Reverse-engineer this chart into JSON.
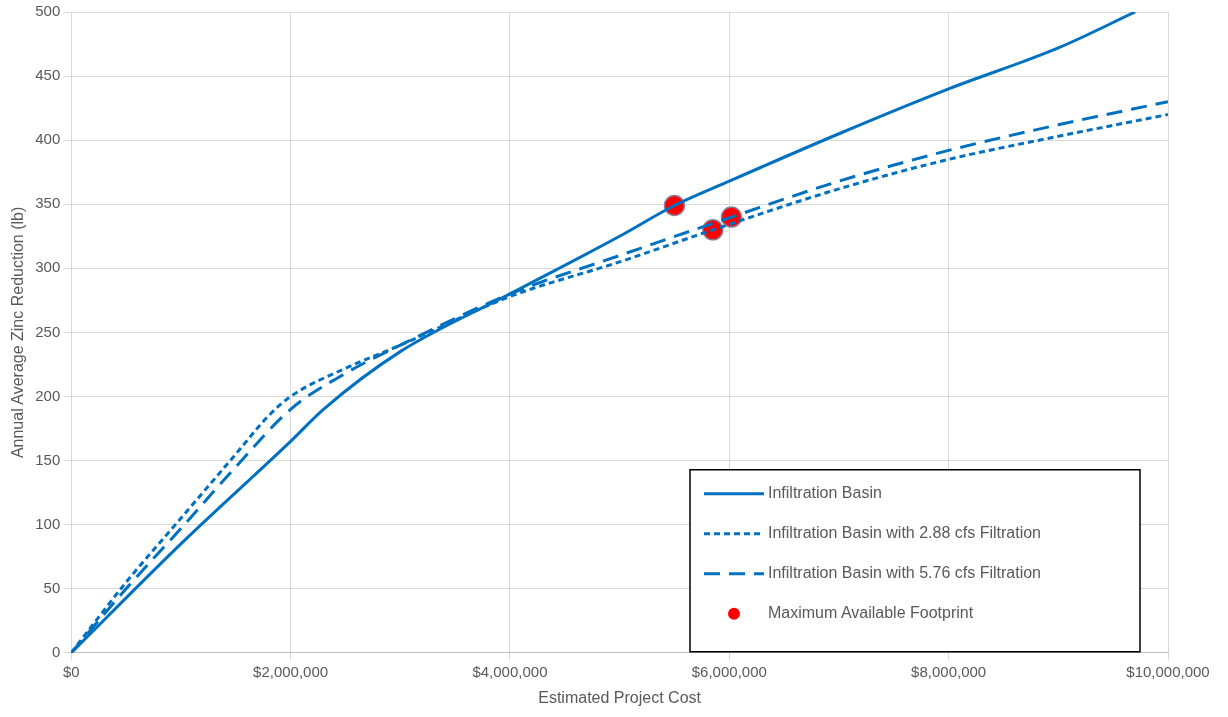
{
  "chart_data": {
    "type": "line",
    "xlabel": "Estimated Project Cost",
    "ylabel": "Annual Average Zinc Reduction (lb)",
    "xlim": [
      0,
      10000000
    ],
    "xticks": [
      {
        "value": 0,
        "label": "$0"
      },
      {
        "value": 2000000,
        "label": "$2,000,000"
      },
      {
        "value": 4000000,
        "label": "$4,000,000"
      },
      {
        "value": 6000000,
        "label": "$6,000,000"
      },
      {
        "value": 8000000,
        "label": "$8,000,000"
      },
      {
        "value": 10000000,
        "label": "$10,000,000"
      }
    ],
    "ylim": [
      0,
      500
    ],
    "yticks": [
      0,
      50,
      100,
      150,
      200,
      250,
      300,
      350,
      400,
      450,
      500
    ],
    "grid": true,
    "legend": "bottom right",
    "marker": "none",
    "series": [
      {
        "name": "Infiltration Basin",
        "color": "#0070c0",
        "line_style": "solid",
        "x": [
          0,
          1000000,
          2000000,
          2300000,
          3000000,
          4000000,
          5000000,
          5500000,
          6000000,
          7000000,
          8000000,
          9000000,
          9700000
        ],
        "values": [
          0,
          85,
          165,
          190,
          235,
          280,
          325,
          349,
          368,
          405,
          440,
          472,
          500
        ]
      },
      {
        "name": "Infiltration Basin with 2.88 cfs Filtration",
        "color": "#0070c0",
        "line_style": "dotted",
        "x": [
          0,
          500000,
          1000000,
          1500000,
          1800000,
          2000000,
          2500000,
          3000000,
          4000000,
          5000000,
          5850000,
          7000000,
          8000000,
          9000000,
          10000000
        ],
        "values": [
          0,
          55,
          105,
          155,
          185,
          200,
          222,
          240,
          278,
          305,
          330,
          362,
          385,
          403,
          420
        ]
      },
      {
        "name": "Infiltration Basin with 5.76 cfs Filtration",
        "color": "#0070c0",
        "line_style": "dashed",
        "x": [
          0,
          500000,
          1000000,
          1500000,
          2000000,
          2500000,
          3000000,
          4000000,
          5000000,
          6020000,
          7000000,
          8000000,
          9000000,
          10000000
        ],
        "values": [
          0,
          50,
          97,
          145,
          190,
          218,
          240,
          280,
          310,
          340,
          368,
          392,
          412,
          430
        ]
      },
      {
        "name": "Maximum Available Footprint",
        "type": "scatter",
        "marker": "circle",
        "color": "#ff0000",
        "x": [
          5500000,
          5850000,
          6020000
        ],
        "values": [
          349,
          330,
          340
        ]
      }
    ]
  }
}
